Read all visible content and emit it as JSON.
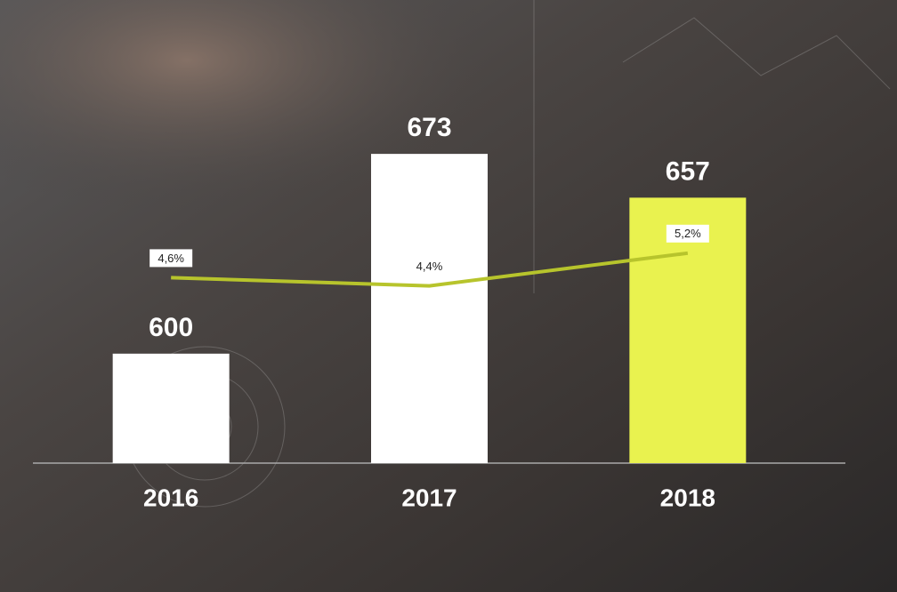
{
  "chart_data": {
    "type": "bar",
    "categories": [
      "2016",
      "2017",
      "2018"
    ],
    "series": [
      {
        "type": "bar",
        "axis": "y",
        "colors": [
          "#ffffff",
          "#ffffff",
          "#e9f24f"
        ],
        "values": [
          600,
          673,
          657
        ]
      },
      {
        "type": "line",
        "axis": "y2",
        "color": "#b7c42c",
        "values": [
          4.6,
          4.4,
          5.2
        ],
        "value_labels": [
          "4,6%",
          "4,4%",
          "5,2%"
        ]
      }
    ],
    "ylim": [
      560,
      700
    ],
    "y2lim": [
      4,
      6
    ],
    "grid": false
  }
}
